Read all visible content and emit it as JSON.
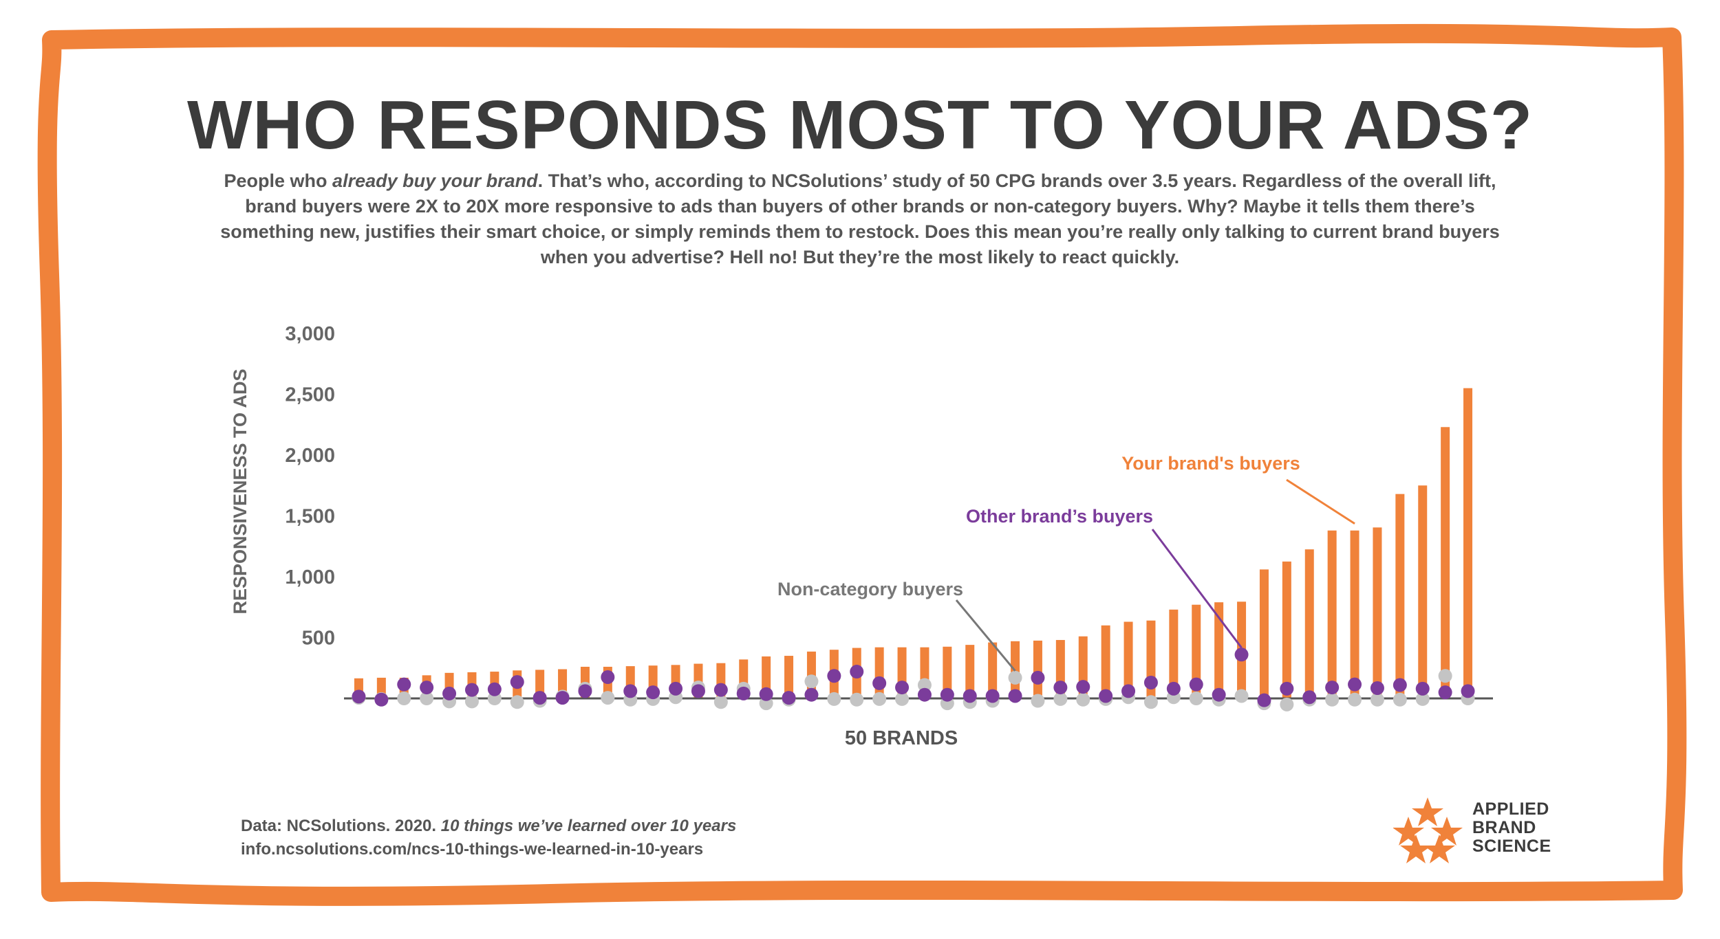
{
  "title": "WHO RESPONDS MOST TO YOUR ADS?",
  "subtitle": {
    "p1": "People who ",
    "p1_em": "already buy your brand",
    "p2": ". That’s who, according to NCSolutions’ study of 50 CPG brands over 3.5 years. Regardless of the overall lift, brand buyers were 2X to 20X more responsive to ads than buyers of other brands or non-category buyers. Why? Maybe it tells them there’s something new, justifies their smart choice, or simply reminds them to restock. Does this mean you’re really only talking to current brand buyers when you advertise? Hell no! But they’re the most likely to react quickly."
  },
  "colors": {
    "frame": "#f0823a",
    "your_brand": "#f0823a",
    "other_brand": "#7b3c9b",
    "non_category": "#c4c4c4",
    "text": "#555555",
    "title": "#3b3b3b"
  },
  "chart_data": {
    "type": "bar",
    "ylabel": "RESPONSIVENESS TO ADS",
    "xlabel": "50 BRANDS",
    "ylim": [
      0,
      3000
    ],
    "yticks": [
      500,
      1000,
      1500,
      2000,
      2500,
      3000
    ],
    "ytick_labels": [
      "500",
      "1,000",
      "1,500",
      "2,000",
      "2,500",
      "3,000"
    ],
    "annotations": {
      "your_brand": "Your brand's buyers",
      "other_brand": "Other brand’s buyers",
      "non_category": "Non-category buyers"
    },
    "series": [
      {
        "name": "Your brand's buyers",
        "type": "bar",
        "values": [
          165,
          170,
          170,
          190,
          210,
          215,
          220,
          230,
          235,
          240,
          260,
          260,
          265,
          270,
          275,
          285,
          290,
          320,
          345,
          350,
          385,
          400,
          415,
          420,
          420,
          420,
          425,
          440,
          460,
          470,
          475,
          480,
          510,
          600,
          630,
          640,
          730,
          770,
          790,
          795,
          1060,
          1125,
          1225,
          1380,
          1380,
          1405,
          1680,
          1750,
          2230,
          2550
        ]
      },
      {
        "name": "Other brand’s buyers",
        "type": "dot",
        "values": [
          15,
          -10,
          115,
          90,
          40,
          70,
          75,
          135,
          5,
          5,
          60,
          175,
          60,
          50,
          80,
          60,
          70,
          40,
          35,
          5,
          30,
          185,
          220,
          125,
          90,
          30,
          30,
          20,
          20,
          20,
          170,
          90,
          95,
          20,
          60,
          130,
          80,
          115,
          30,
          360,
          -15,
          80,
          10,
          90,
          115,
          85,
          110,
          80,
          50,
          60
        ]
      },
      {
        "name": "Non-category buyers",
        "type": "dot",
        "values": [
          5,
          -5,
          0,
          0,
          -25,
          -25,
          0,
          -30,
          -20,
          15,
          80,
          5,
          -10,
          -5,
          10,
          90,
          -30,
          80,
          -40,
          -10,
          140,
          -5,
          -10,
          -5,
          -5,
          110,
          -40,
          -30,
          -20,
          170,
          -20,
          -5,
          -10,
          -5,
          10,
          -30,
          10,
          0,
          -10,
          20,
          -40,
          -50,
          -10,
          -10,
          -10,
          -10,
          -10,
          -5,
          185,
          0
        ]
      }
    ]
  },
  "footer": {
    "line1": "Data: NCSolutions. 2020. ",
    "line1_em": "10 things we’ve learned over 10 years",
    "line2": "info.ncsolutions.com/ncs-10-things-we-learned-in-10-years"
  },
  "logo": {
    "line1": "APPLIED",
    "line2": "BRAND",
    "line3": "SCIENCE"
  }
}
